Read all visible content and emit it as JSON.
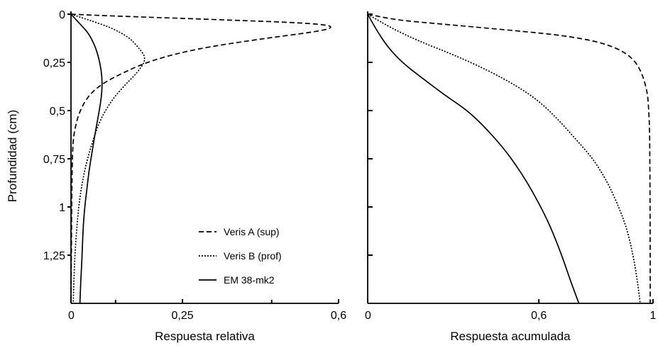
{
  "chart_data": [
    {
      "type": "line",
      "orientation": "depth-profile",
      "ylabel": "Profundidad (cm)",
      "xlabel": "Respuesta relativa",
      "xlim": [
        0,
        0.6
      ],
      "ylim": [
        0,
        1.5
      ],
      "y_inverted": true,
      "x_ticks": [
        "0",
        "0,25",
        "0,6"
      ],
      "x_tick_values": [
        0,
        0.25,
        0.6
      ],
      "x_minor_tick_values": [
        0.1,
        0.45
      ],
      "y_ticks": [
        "0",
        "0,25",
        "0,5",
        "0,75",
        "1",
        "1,25"
      ],
      "y_tick_values": [
        0,
        0.25,
        0.5,
        0.75,
        1,
        1.25
      ],
      "legend": {
        "placement": "bottom-right"
      },
      "series": [
        {
          "name": "Veris A (sup)",
          "style": "dashed",
          "points": [
            [
              0,
              0
            ],
            [
              0.1,
              0.01
            ],
            [
              0.35,
              0.03
            ],
            [
              0.52,
              0.045
            ],
            [
              0.59,
              0.06
            ],
            [
              0.57,
              0.085
            ],
            [
              0.42,
              0.13
            ],
            [
              0.28,
              0.18
            ],
            [
              0.18,
              0.24
            ],
            [
              0.12,
              0.3
            ],
            [
              0.07,
              0.36
            ],
            [
              0.04,
              0.42
            ],
            [
              0.02,
              0.5
            ],
            [
              0.01,
              0.58
            ],
            [
              0.005,
              0.65
            ],
            [
              0.003,
              0.75
            ],
            [
              0.002,
              0.9
            ],
            [
              0.001,
              1.2
            ],
            [
              0,
              1.5
            ]
          ]
        },
        {
          "name": "Veris B (prof)",
          "style": "dotted",
          "points": [
            [
              0,
              0
            ],
            [
              0.04,
              0.03
            ],
            [
              0.09,
              0.07
            ],
            [
              0.13,
              0.12
            ],
            [
              0.15,
              0.17
            ],
            [
              0.17,
              0.23
            ],
            [
              0.15,
              0.3
            ],
            [
              0.12,
              0.37
            ],
            [
              0.09,
              0.45
            ],
            [
              0.065,
              0.55
            ],
            [
              0.05,
              0.65
            ],
            [
              0.037,
              0.75
            ],
            [
              0.027,
              0.85
            ],
            [
              0.02,
              0.95
            ],
            [
              0.015,
              1.05
            ],
            [
              0.01,
              1.2
            ],
            [
              0.007,
              1.35
            ],
            [
              0.005,
              1.5
            ]
          ]
        },
        {
          "name": "EM 38-mk2",
          "style": "solid",
          "points": [
            [
              0,
              0
            ],
            [
              0.02,
              0.05
            ],
            [
              0.04,
              0.1
            ],
            [
              0.055,
              0.17
            ],
            [
              0.065,
              0.25
            ],
            [
              0.07,
              0.33
            ],
            [
              0.069,
              0.42
            ],
            [
              0.062,
              0.52
            ],
            [
              0.054,
              0.62
            ],
            [
              0.047,
              0.72
            ],
            [
              0.04,
              0.82
            ],
            [
              0.035,
              0.92
            ],
            [
              0.03,
              1.02
            ],
            [
              0.027,
              1.12
            ],
            [
              0.025,
              1.25
            ],
            [
              0.022,
              1.38
            ],
            [
              0.02,
              1.5
            ]
          ]
        }
      ]
    },
    {
      "type": "line",
      "orientation": "depth-profile",
      "xlabel": "Respuesta acumulada",
      "ylabel": "",
      "xlim": [
        0,
        1.0
      ],
      "ylim": [
        0,
        1.5
      ],
      "y_inverted": true,
      "x_ticks": [
        "0",
        "0,6",
        "1"
      ],
      "x_tick_values": [
        0,
        0.6,
        1.0
      ],
      "y_tick_values": [
        0,
        0.25,
        0.5,
        0.75,
        1,
        1.25
      ],
      "series": [
        {
          "name": "Veris A (sup)",
          "style": "dashed",
          "points": [
            [
              0,
              0
            ],
            [
              0.1,
              0.03
            ],
            [
              0.25,
              0.05
            ],
            [
              0.4,
              0.07
            ],
            [
              0.55,
              0.09
            ],
            [
              0.68,
              0.11
            ],
            [
              0.8,
              0.14
            ],
            [
              0.88,
              0.18
            ],
            [
              0.93,
              0.23
            ],
            [
              0.96,
              0.3
            ],
            [
              0.98,
              0.4
            ],
            [
              0.985,
              0.5
            ],
            [
              0.988,
              0.6
            ],
            [
              0.989,
              0.8
            ],
            [
              0.99,
              1.2
            ],
            [
              0.99,
              1.5
            ]
          ]
        },
        {
          "name": "Veris B (prof)",
          "style": "dotted",
          "points": [
            [
              0,
              0
            ],
            [
              0.08,
              0.07
            ],
            [
              0.18,
              0.14
            ],
            [
              0.3,
              0.21
            ],
            [
              0.42,
              0.29
            ],
            [
              0.52,
              0.37
            ],
            [
              0.6,
              0.45
            ],
            [
              0.67,
              0.55
            ],
            [
              0.73,
              0.65
            ],
            [
              0.79,
              0.75
            ],
            [
              0.84,
              0.87
            ],
            [
              0.88,
              1.0
            ],
            [
              0.91,
              1.12
            ],
            [
              0.93,
              1.25
            ],
            [
              0.945,
              1.38
            ],
            [
              0.955,
              1.5
            ]
          ]
        },
        {
          "name": "EM 38-mk2",
          "style": "solid",
          "points": [
            [
              0,
              0
            ],
            [
              0.03,
              0.08
            ],
            [
              0.07,
              0.17
            ],
            [
              0.12,
              0.25
            ],
            [
              0.19,
              0.33
            ],
            [
              0.27,
              0.42
            ],
            [
              0.35,
              0.5
            ],
            [
              0.42,
              0.6
            ],
            [
              0.49,
              0.72
            ],
            [
              0.55,
              0.85
            ],
            [
              0.6,
              0.98
            ],
            [
              0.64,
              1.1
            ],
            [
              0.68,
              1.25
            ],
            [
              0.71,
              1.38
            ],
            [
              0.74,
              1.5
            ]
          ]
        }
      ]
    }
  ]
}
